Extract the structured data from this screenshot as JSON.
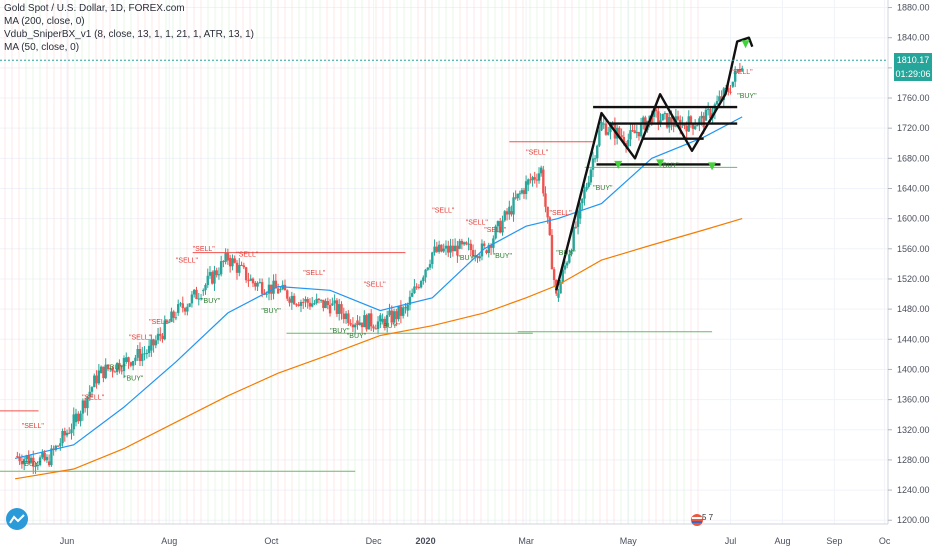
{
  "legend": {
    "title": "Gold Spot / U.S. Dollar, 1D, FOREX.com",
    "ma200": "MA (200, close, 0)",
    "vdub": "Vdub_SniperBX_v1 (8, close, 13, 1, 1, 21, 1, ATR, 13, 1)",
    "ma50": "MA (50, close, 0)"
  },
  "price_tags": {
    "last": "1810.17",
    "countdown": "01:29:06"
  },
  "colors": {
    "up": "#26a69a",
    "down": "#ef5350",
    "ma200": "#f57c00",
    "ma50": "#2196f3",
    "sell_label": "#e53935",
    "buy_label": "#2e7d32",
    "last_tag": "#26a69a",
    "countdown_tag": "#26a69a"
  },
  "chart_data": {
    "type": "line",
    "title": "Gold Spot / U.S. Dollar, 1D, FOREX.com",
    "y_ticks": [
      1200,
      1240,
      1280,
      1320,
      1360,
      1400,
      1440,
      1480,
      1520,
      1560,
      1600,
      1640,
      1680,
      1720,
      1760,
      1800,
      1840,
      1880
    ],
    "x_ticks": [
      "Jun",
      "Aug",
      "Oct",
      "Dec",
      "2020",
      "Mar",
      "May",
      "Jul",
      "Aug",
      "Sep",
      "Oc"
    ],
    "ylim": [
      1195,
      1890
    ],
    "series": [
      {
        "name": "Gold Spot / U.S. Dollar",
        "x": [
          "2019-05-01",
          "2019-05-20",
          "2019-06-05",
          "2019-06-20",
          "2019-07-05",
          "2019-07-20",
          "2019-08-05",
          "2019-08-20",
          "2019-09-05",
          "2019-09-20",
          "2019-10-05",
          "2019-10-20",
          "2019-11-05",
          "2019-11-20",
          "2019-12-05",
          "2019-12-20",
          "2020-01-05",
          "2020-01-20",
          "2020-02-05",
          "2020-02-20",
          "2020-03-01",
          "2020-03-10",
          "2020-03-19",
          "2020-04-01",
          "2020-04-15",
          "2020-05-01",
          "2020-05-15",
          "2020-06-01",
          "2020-06-15",
          "2020-07-01",
          "2020-07-08"
        ],
        "values": [
          1285,
          1278,
          1330,
          1395,
          1410,
          1425,
          1475,
          1505,
          1548,
          1515,
          1505,
          1490,
          1485,
          1465,
          1462,
          1478,
          1555,
          1560,
          1558,
          1610,
          1645,
          1665,
          1495,
          1600,
          1725,
          1705,
          1735,
          1725,
          1730,
          1775,
          1810
        ]
      },
      {
        "name": "MA (50, close, 0)",
        "x": [
          "2019-05-01",
          "2019-06-05",
          "2019-07-05",
          "2019-08-05",
          "2019-09-05",
          "2019-10-05",
          "2019-11-05",
          "2019-12-05",
          "2020-01-05",
          "2020-02-05",
          "2020-03-01",
          "2020-03-20",
          "2020-04-15",
          "2020-05-15",
          "2020-06-15",
          "2020-07-08"
        ],
        "values": [
          1282,
          1300,
          1350,
          1410,
          1475,
          1510,
          1505,
          1478,
          1495,
          1560,
          1590,
          1600,
          1620,
          1680,
          1708,
          1735
        ]
      },
      {
        "name": "MA (200, close, 0)",
        "x": [
          "2019-05-01",
          "2019-06-05",
          "2019-07-05",
          "2019-08-05",
          "2019-09-05",
          "2019-10-05",
          "2019-11-05",
          "2019-12-05",
          "2020-01-05",
          "2020-02-05",
          "2020-03-01",
          "2020-03-20",
          "2020-04-15",
          "2020-05-15",
          "2020-06-15",
          "2020-07-08"
        ],
        "values": [
          1255,
          1268,
          1295,
          1330,
          1365,
          1395,
          1420,
          1445,
          1458,
          1475,
          1495,
          1512,
          1545,
          1565,
          1585,
          1600
        ]
      }
    ],
    "annotations": {
      "sell_label": "\"SELL\"",
      "buy_label": "\"BUY\""
    },
    "grid": true,
    "legend": "top-left"
  },
  "bottom_badge": {
    "text": "5 7"
  }
}
